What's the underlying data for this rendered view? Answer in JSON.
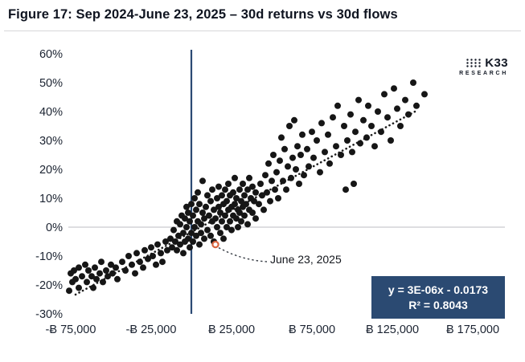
{
  "header": {
    "title": "Figure 17: Sep 2024-June 23, 2025 – 30d returns vs 30d flows"
  },
  "logo": {
    "name": "K33",
    "sub": "RESEARCH"
  },
  "annotation": {
    "label": "June 23, 2025"
  },
  "equation_box": {
    "line1": "y = 3E-06x - 0.0173",
    "line2": "R² = 0.8043",
    "bg": "#2b4a72",
    "text_color": "#ffffff"
  },
  "colors": {
    "axis_line": "#2b4a74",
    "gridline": "#c9cbcf",
    "dot": "#161616",
    "trend": "#1c1c1c",
    "highlight": "#d96540",
    "tick_text": "#1b2331"
  },
  "chart_data": {
    "type": "scatter",
    "title": "Figure 17: Sep 2024-June 23, 2025 – 30d returns vs 30d flows",
    "xlabel": "",
    "ylabel": "",
    "x_unit": "BTC (30d flows)",
    "y_unit": "% (30d returns)",
    "xlim": [
      -80000,
      195000
    ],
    "ylim": [
      -30,
      60
    ],
    "grid": "zero-line-only",
    "legend": "none",
    "x_ticks": [
      -75000,
      -25000,
      25000,
      75000,
      125000,
      175000
    ],
    "x_tick_labels": [
      "-Ƀ 75,000",
      "-Ƀ 25,000",
      "Ƀ 25,000",
      "Ƀ 75,000",
      "Ƀ 125,000",
      "Ƀ 175,000"
    ],
    "y_ticks": [
      60,
      50,
      40,
      30,
      20,
      10,
      0,
      -10,
      -20,
      -30
    ],
    "y_tick_labels": [
      "60%",
      "50%",
      "40%",
      "30%",
      "20%",
      "10%",
      "0%",
      "-10%",
      "-20%",
      "-30%"
    ],
    "trendline": {
      "equation": "y = 3E-06x - 0.0173",
      "slope": 3e-06,
      "intercept": -0.0173,
      "r_squared": 0.8043,
      "x_start": -72000,
      "x_end": 140000,
      "style": "dotted"
    },
    "highlight_point": [
      15000,
      -6
    ],
    "highlight_label": "June 23, 2025",
    "points": [
      [
        -76000,
        -22
      ],
      [
        -75000,
        -16
      ],
      [
        -74000,
        -19
      ],
      [
        -73000,
        -15
      ],
      [
        -72000,
        -18
      ],
      [
        -70000,
        -14
      ],
      [
        -70000,
        -21
      ],
      [
        -68000,
        -17
      ],
      [
        -66000,
        -13
      ],
      [
        -65000,
        -19
      ],
      [
        -64000,
        -15
      ],
      [
        -62000,
        -17
      ],
      [
        -61000,
        -21
      ],
      [
        -60000,
        -14
      ],
      [
        -59000,
        -18
      ],
      [
        -57000,
        -16
      ],
      [
        -56000,
        -12
      ],
      [
        -55000,
        -19
      ],
      [
        -53000,
        -15
      ],
      [
        -52000,
        -17
      ],
      [
        -50000,
        -13
      ],
      [
        -49000,
        -16
      ],
      [
        -47000,
        -14
      ],
      [
        -46000,
        -18
      ],
      [
        -43000,
        -12
      ],
      [
        -41000,
        -15
      ],
      [
        -39000,
        -10
      ],
      [
        -37000,
        -13
      ],
      [
        -35000,
        -16
      ],
      [
        -34000,
        -9
      ],
      [
        -32000,
        -12
      ],
      [
        -30000,
        -14
      ],
      [
        -29000,
        -8
      ],
      [
        -27000,
        -11
      ],
      [
        -25000,
        -7
      ],
      [
        -24000,
        -10
      ],
      [
        -22000,
        -13
      ],
      [
        -21000,
        -6
      ],
      [
        -19000,
        -9
      ],
      [
        -18000,
        -12
      ],
      [
        -16000,
        -5
      ],
      [
        -15000,
        -8
      ],
      [
        -13000,
        -4
      ],
      [
        -12000,
        -7
      ],
      [
        -11000,
        -1
      ],
      [
        -10000,
        -5
      ],
      [
        -9000,
        2
      ],
      [
        -9000,
        -8
      ],
      [
        -8000,
        -3
      ],
      [
        -7000,
        1
      ],
      [
        -7000,
        -6
      ],
      [
        -6000,
        4
      ],
      [
        -5000,
        -2
      ],
      [
        -5000,
        -9
      ],
      [
        -4000,
        3
      ],
      [
        -4000,
        -5
      ],
      [
        -3000,
        0
      ],
      [
        -3000,
        7
      ],
      [
        -2000,
        -4
      ],
      [
        -2000,
        5
      ],
      [
        -1000,
        -7
      ],
      [
        -1000,
        2
      ],
      [
        0,
        -2
      ],
      [
        0,
        8
      ],
      [
        1000,
        4
      ],
      [
        1000,
        -5
      ],
      [
        2000,
        0
      ],
      [
        2000,
        10
      ],
      [
        3000,
        -3
      ],
      [
        3000,
        6
      ],
      [
        4000,
        2
      ],
      [
        4000,
        12
      ],
      [
        5000,
        -6
      ],
      [
        5000,
        8
      ],
      [
        6000,
        1
      ],
      [
        6000,
        -2
      ],
      [
        7000,
        5
      ],
      [
        7000,
        16
      ],
      [
        8000,
        -4
      ],
      [
        8000,
        3
      ],
      [
        9000,
        7
      ],
      [
        10000,
        -1
      ],
      [
        10000,
        11
      ],
      [
        11000,
        4
      ],
      [
        12000,
        -3
      ],
      [
        12000,
        9
      ],
      [
        13000,
        2
      ],
      [
        13000,
        13
      ],
      [
        14000,
        6
      ],
      [
        14000,
        -5
      ],
      [
        15000,
        3
      ],
      [
        16000,
        10
      ],
      [
        16000,
        0
      ],
      [
        17000,
        7
      ],
      [
        17000,
        14
      ],
      [
        18000,
        -2
      ],
      [
        18000,
        5
      ],
      [
        19000,
        11
      ],
      [
        19000,
        2
      ],
      [
        20000,
        8
      ],
      [
        20000,
        -4
      ],
      [
        21000,
        13
      ],
      [
        21000,
        4
      ],
      [
        22000,
        0
      ],
      [
        22000,
        9
      ],
      [
        23000,
        6
      ],
      [
        23000,
        15
      ],
      [
        24000,
        2
      ],
      [
        24000,
        11
      ],
      [
        25000,
        7
      ],
      [
        25000,
        -1
      ],
      [
        26000,
        4
      ],
      [
        26000,
        12
      ],
      [
        27000,
        8
      ],
      [
        27000,
        17
      ],
      [
        28000,
        3
      ],
      [
        28000,
        10
      ],
      [
        29000,
        6
      ],
      [
        29000,
        0
      ],
      [
        30000,
        13
      ],
      [
        30000,
        5
      ],
      [
        31000,
        9
      ],
      [
        31000,
        2
      ],
      [
        32000,
        15
      ],
      [
        32000,
        7
      ],
      [
        33000,
        11
      ],
      [
        33000,
        4
      ],
      [
        34000,
        8
      ],
      [
        35000,
        13
      ],
      [
        35000,
        1
      ],
      [
        36000,
        6
      ],
      [
        36000,
        17
      ],
      [
        37000,
        10
      ],
      [
        38000,
        5
      ],
      [
        38000,
        14
      ],
      [
        39000,
        9
      ],
      [
        40000,
        12
      ],
      [
        40000,
        3
      ],
      [
        42000,
        8
      ],
      [
        43000,
        15
      ],
      [
        44000,
        11
      ],
      [
        45000,
        6
      ],
      [
        46000,
        18
      ],
      [
        47000,
        12
      ],
      [
        48000,
        22
      ],
      [
        49000,
        9
      ],
      [
        50000,
        16
      ],
      [
        51000,
        25
      ],
      [
        52000,
        13
      ],
      [
        53000,
        19
      ],
      [
        54000,
        10
      ],
      [
        55000,
        23
      ],
      [
        56000,
        31
      ],
      [
        57000,
        16
      ],
      [
        58000,
        27
      ],
      [
        59000,
        13
      ],
      [
        60000,
        21
      ],
      [
        61000,
        35
      ],
      [
        62000,
        17
      ],
      [
        63000,
        24
      ],
      [
        64000,
        37
      ],
      [
        65000,
        20
      ],
      [
        66000,
        28
      ],
      [
        67000,
        15
      ],
      [
        68000,
        25
      ],
      [
        69000,
        32
      ],
      [
        70000,
        18
      ],
      [
        72000,
        27
      ],
      [
        73000,
        21
      ],
      [
        75000,
        33
      ],
      [
        76000,
        24
      ],
      [
        78000,
        30
      ],
      [
        80000,
        19
      ],
      [
        81000,
        36
      ],
      [
        83000,
        26
      ],
      [
        85000,
        32
      ],
      [
        86000,
        22
      ],
      [
        88000,
        38
      ],
      [
        90000,
        28
      ],
      [
        91000,
        42
      ],
      [
        93000,
        25
      ],
      [
        95000,
        35
      ],
      [
        96000,
        13
      ],
      [
        97000,
        30
      ],
      [
        99000,
        39
      ],
      [
        100000,
        26
      ],
      [
        101000,
        15
      ],
      [
        102000,
        33
      ],
      [
        104000,
        44
      ],
      [
        105000,
        29
      ],
      [
        107000,
        37
      ],
      [
        109000,
        31
      ],
      [
        110000,
        42
      ],
      [
        112000,
        35
      ],
      [
        114000,
        28
      ],
      [
        116000,
        40
      ],
      [
        118000,
        33
      ],
      [
        120000,
        46
      ],
      [
        122000,
        38
      ],
      [
        124000,
        30
      ],
      [
        126000,
        48
      ],
      [
        128000,
        41
      ],
      [
        130000,
        35
      ],
      [
        133000,
        44
      ],
      [
        135000,
        39
      ],
      [
        138000,
        50
      ],
      [
        140000,
        42
      ],
      [
        145000,
        46
      ]
    ]
  }
}
